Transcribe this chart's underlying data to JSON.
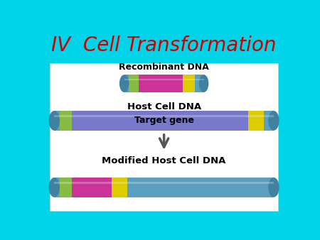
{
  "title": "IV  Cell Transformation",
  "title_color": "#cc0000",
  "title_fontsize": 20,
  "bg_color": "#00d4e8",
  "panel_color": "#ffffff",
  "label_recombinant": "Recombinant DNA",
  "label_host": "Host Cell DNA",
  "label_target": "Target gene",
  "label_modified": "Modified Host Cell DNA",
  "dna_blue_light": "#7bbdd8",
  "dna_blue_mid": "#5a9ec0",
  "dna_blue_dark": "#4080a0",
  "dna_green": "#88bb44",
  "dna_pink": "#cc3399",
  "dna_yellow": "#ddcc00",
  "dna_purple": "#7777cc",
  "dna_purple_light": "#9999dd",
  "arrow_color": "#555555"
}
